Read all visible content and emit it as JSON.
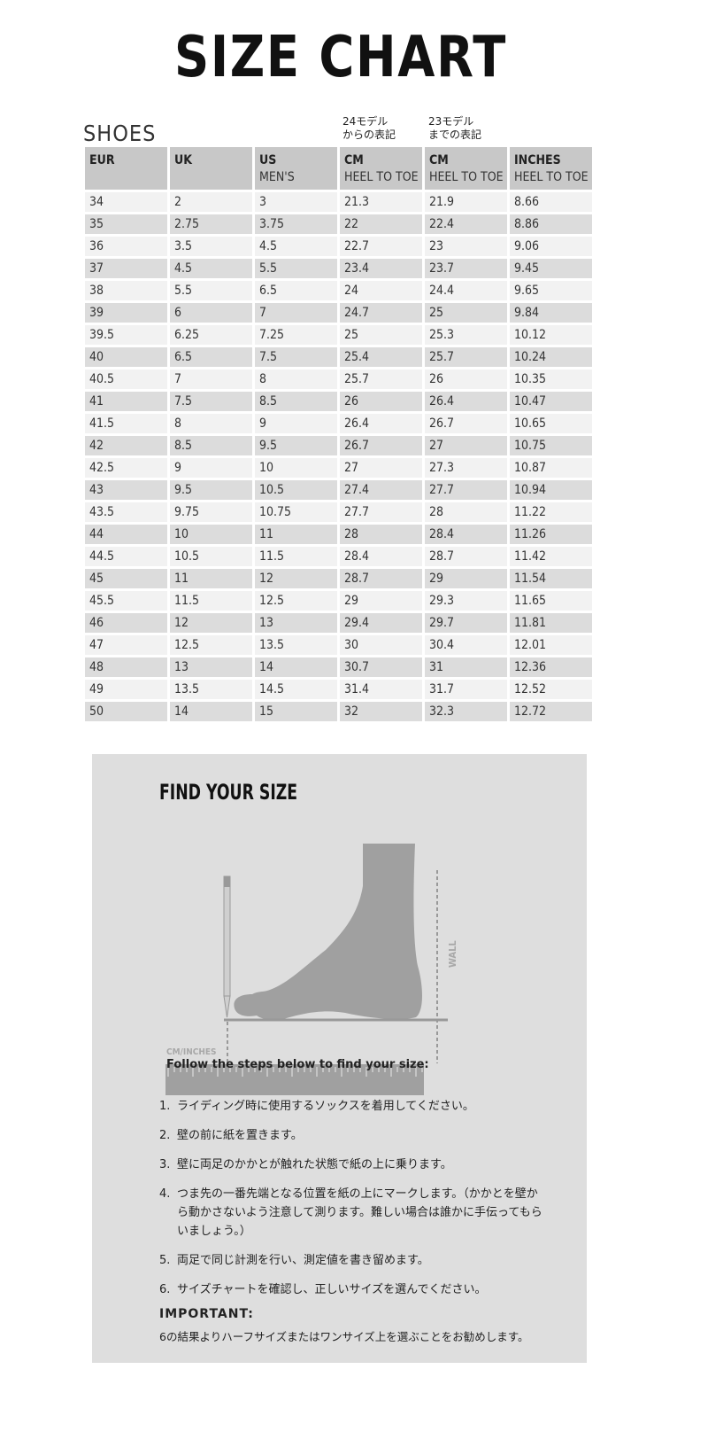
{
  "title": "SIZE CHART",
  "section": "SHOES",
  "notes": {
    "col24": [
      "24モデル",
      "からの表記"
    ],
    "col23": [
      "23モデル",
      "までの表記"
    ]
  },
  "table": {
    "headers": [
      {
        "main": "EUR",
        "sub": ""
      },
      {
        "main": "UK",
        "sub": ""
      },
      {
        "main": "US",
        "sub": "MEN'S"
      },
      {
        "main": "CM",
        "sub": "HEEL TO TOE"
      },
      {
        "main": "CM",
        "sub": "HEEL TO TOE"
      },
      {
        "main": "INCHES",
        "sub": "HEEL TO TOE"
      }
    ],
    "rows": [
      [
        "34",
        "2",
        "3",
        "21.3",
        "21.9",
        "8.66"
      ],
      [
        "35",
        "2.75",
        "3.75",
        "22",
        "22.4",
        "8.86"
      ],
      [
        "36",
        "3.5",
        "4.5",
        "22.7",
        "23",
        "9.06"
      ],
      [
        "37",
        "4.5",
        "5.5",
        "23.4",
        "23.7",
        "9.45"
      ],
      [
        "38",
        "5.5",
        "6.5",
        "24",
        "24.4",
        "9.65"
      ],
      [
        "39",
        "6",
        "7",
        "24.7",
        "25",
        "9.84"
      ],
      [
        "39.5",
        "6.25",
        "7.25",
        "25",
        "25.3",
        "10.12"
      ],
      [
        "40",
        "6.5",
        "7.5",
        "25.4",
        "25.7",
        "10.24"
      ],
      [
        "40.5",
        "7",
        "8",
        "25.7",
        "26",
        "10.35"
      ],
      [
        "41",
        "7.5",
        "8.5",
        "26",
        "26.4",
        "10.47"
      ],
      [
        "41.5",
        "8",
        "9",
        "26.4",
        "26.7",
        "10.65"
      ],
      [
        "42",
        "8.5",
        "9.5",
        "26.7",
        "27",
        "10.75"
      ],
      [
        "42.5",
        "9",
        "10",
        "27",
        "27.3",
        "10.87"
      ],
      [
        "43",
        "9.5",
        "10.5",
        "27.4",
        "27.7",
        "10.94"
      ],
      [
        "43.5",
        "9.75",
        "10.75",
        "27.7",
        "28",
        "11.22"
      ],
      [
        "44",
        "10",
        "11",
        "28",
        "28.4",
        "11.26"
      ],
      [
        "44.5",
        "10.5",
        "11.5",
        "28.4",
        "28.7",
        "11.42"
      ],
      [
        "45",
        "11",
        "12",
        "28.7",
        "29",
        "11.54"
      ],
      [
        "45.5",
        "11.5",
        "12.5",
        "29",
        "29.3",
        "11.65"
      ],
      [
        "46",
        "12",
        "13",
        "29.4",
        "29.7",
        "11.81"
      ],
      [
        "47",
        "12.5",
        "13.5",
        "30",
        "30.4",
        "12.01"
      ],
      [
        "48",
        "13",
        "14",
        "30.7",
        "31",
        "12.36"
      ],
      [
        "49",
        "13.5",
        "14.5",
        "31.4",
        "31.7",
        "12.52"
      ],
      [
        "50",
        "14",
        "15",
        "32",
        "32.3",
        "12.72"
      ]
    ]
  },
  "guide": {
    "heading": "FIND YOUR SIZE",
    "wall_label": "WALL",
    "ruler_label": "CM/INCHES",
    "follow": "Follow the steps below to find your size:",
    "steps": [
      {
        "n": "1.",
        "text": "ライディング時に使用するソックスを着用してください。"
      },
      {
        "n": "2.",
        "text": "壁の前に紙を置きます。"
      },
      {
        "n": "3.",
        "text": "壁に両足のかかとが触れた状態で紙の上に乗ります。"
      },
      {
        "n": "4.",
        "text": "つま先の一番先端となる位置を紙の上にマークします。（かかとを壁から動かさないよう注意して測ります。難しい場合は誰かに手伝ってもらいましょう。）"
      },
      {
        "n": "5.",
        "text": "両足で同じ計測を行い、測定値を書き留めます。"
      },
      {
        "n": "6.",
        "text": "サイズチャートを確認し、正しいサイズを選んでください。"
      }
    ],
    "important_label": "IMPORTANT:",
    "important_text": "6の結果よりハーフサイズまたはワンサイズ上を選ぶことをお勧めします。"
  }
}
